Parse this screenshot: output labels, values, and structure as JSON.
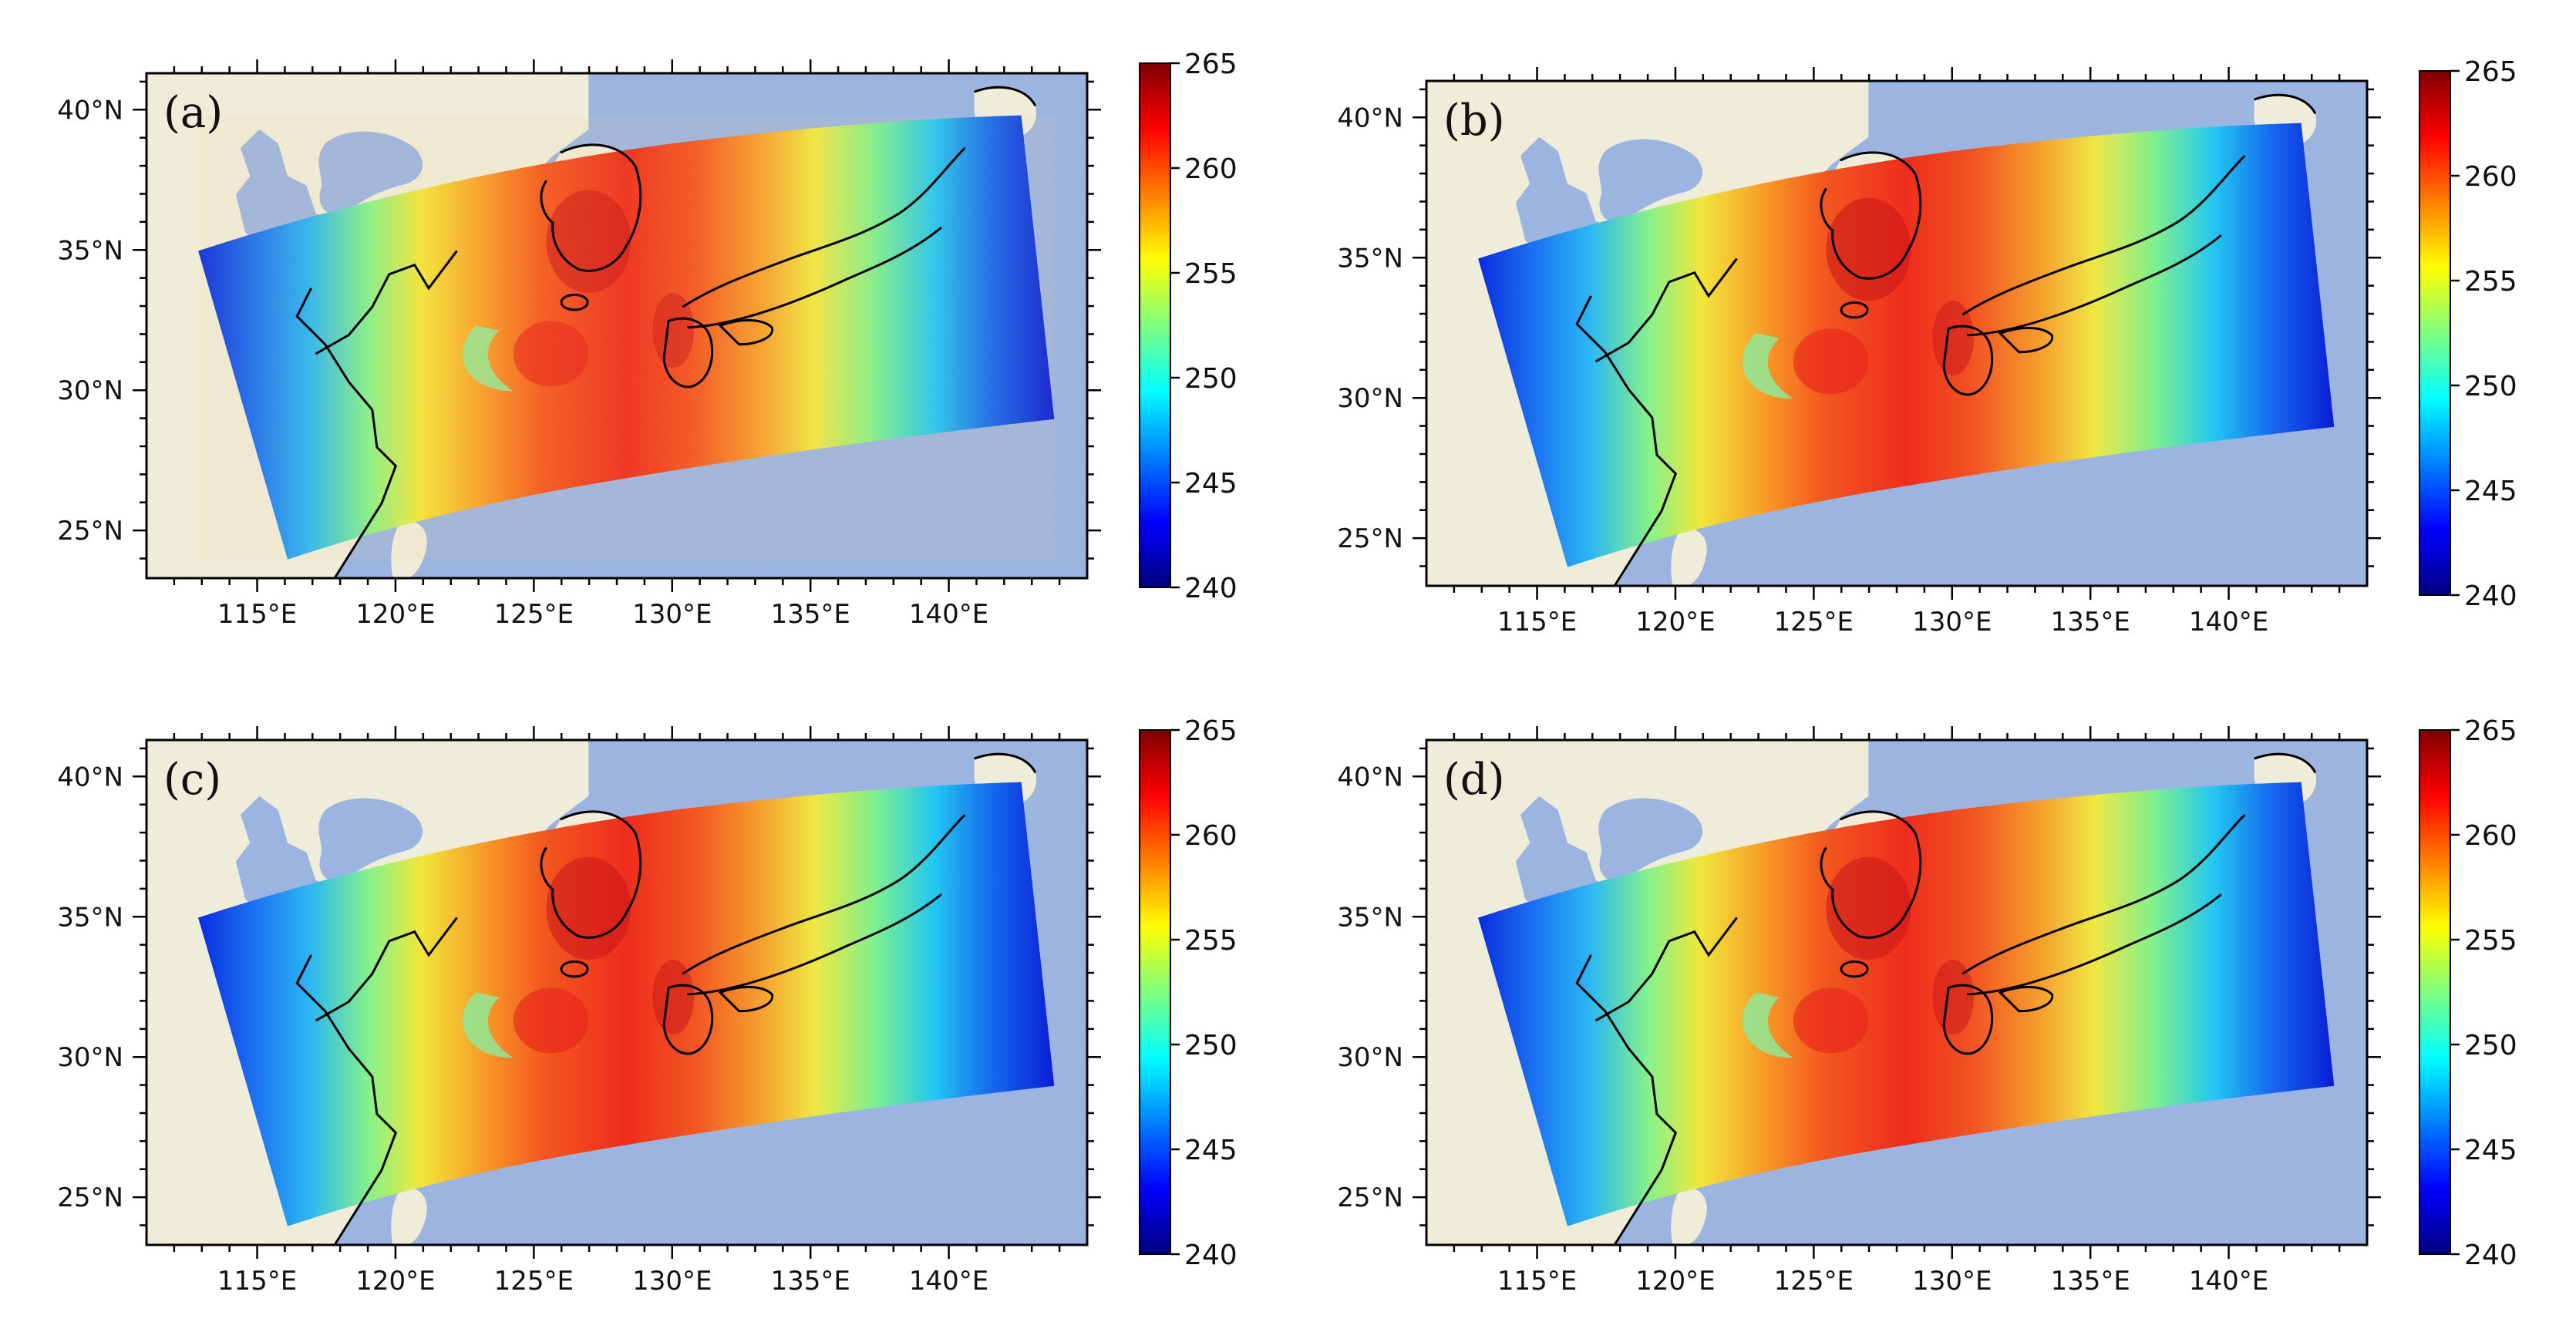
{
  "figure": {
    "colorbar_min": 240,
    "colorbar_max": 265,
    "colorbar_ticks": [
      "265",
      "260",
      "255",
      "250",
      "245",
      "240"
    ],
    "x_ticks": [
      "115°E",
      "120°E",
      "125°E",
      "130°E",
      "135°E",
      "140°E"
    ],
    "y_ticks": [
      "40°N",
      "35°N",
      "30°N",
      "25°N"
    ],
    "colors": {
      "ocean": "#9bb5e0",
      "land": "#efecd9",
      "coast": "#000000"
    },
    "colormap": [
      "#00007f",
      "#0000ff",
      "#007fff",
      "#00ffff",
      "#7fff7f",
      "#ffff00",
      "#ff7f00",
      "#ff0000",
      "#7f0000"
    ],
    "panels": [
      {
        "id": "a",
        "label": "(a)",
        "noisy": true
      },
      {
        "id": "b",
        "label": "(b)",
        "noisy": false
      },
      {
        "id": "c",
        "label": "(c)",
        "noisy": false
      },
      {
        "id": "d",
        "label": "(d)",
        "noisy": false
      }
    ]
  }
}
